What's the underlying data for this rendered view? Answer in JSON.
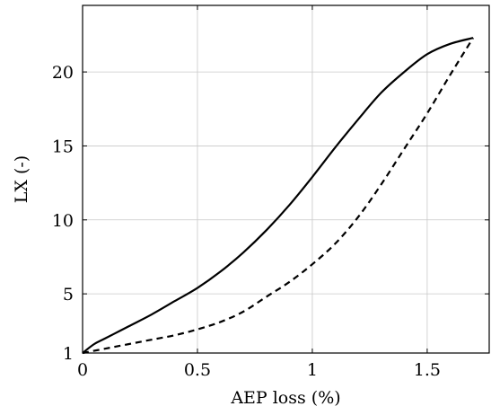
{
  "chart_data": {
    "type": "line",
    "title": "",
    "xlabel": "AEP loss (%)",
    "ylabel": "LX (-)",
    "xlim": [
      0,
      1.77
    ],
    "ylim": [
      1,
      24.5
    ],
    "grid": true,
    "legend": "none",
    "xticks": [
      0,
      0.5,
      1,
      1.5
    ],
    "xtick_labels": [
      "0",
      "0.5",
      "1",
      "1.5"
    ],
    "yticks": [
      1,
      5,
      10,
      15,
      20
    ],
    "ytick_labels": [
      "1",
      "5",
      "10",
      "15",
      "20"
    ],
    "series": [
      {
        "style": "solid",
        "color": "#000000",
        "x": [
          0,
          0.05,
          0.1,
          0.2,
          0.3,
          0.4,
          0.5,
          0.6,
          0.7,
          0.8,
          0.9,
          1.0,
          1.1,
          1.2,
          1.3,
          1.4,
          1.5,
          1.6,
          1.7
        ],
        "y": [
          1.0,
          1.6,
          2.0,
          2.8,
          3.6,
          4.5,
          5.4,
          6.5,
          7.8,
          9.3,
          11.0,
          12.9,
          14.9,
          16.8,
          18.6,
          20.0,
          21.2,
          21.9,
          22.3
        ]
      },
      {
        "style": "dashed",
        "color": "#000000",
        "x": [
          0,
          0.1,
          0.2,
          0.3,
          0.4,
          0.5,
          0.6,
          0.7,
          0.8,
          0.9,
          1.0,
          1.1,
          1.2,
          1.3,
          1.4,
          1.5,
          1.6,
          1.7
        ],
        "y": [
          1.0,
          1.3,
          1.6,
          1.9,
          2.2,
          2.6,
          3.1,
          3.8,
          4.8,
          5.8,
          7.0,
          8.4,
          10.2,
          12.4,
          14.8,
          17.2,
          19.8,
          22.3
        ]
      }
    ]
  }
}
